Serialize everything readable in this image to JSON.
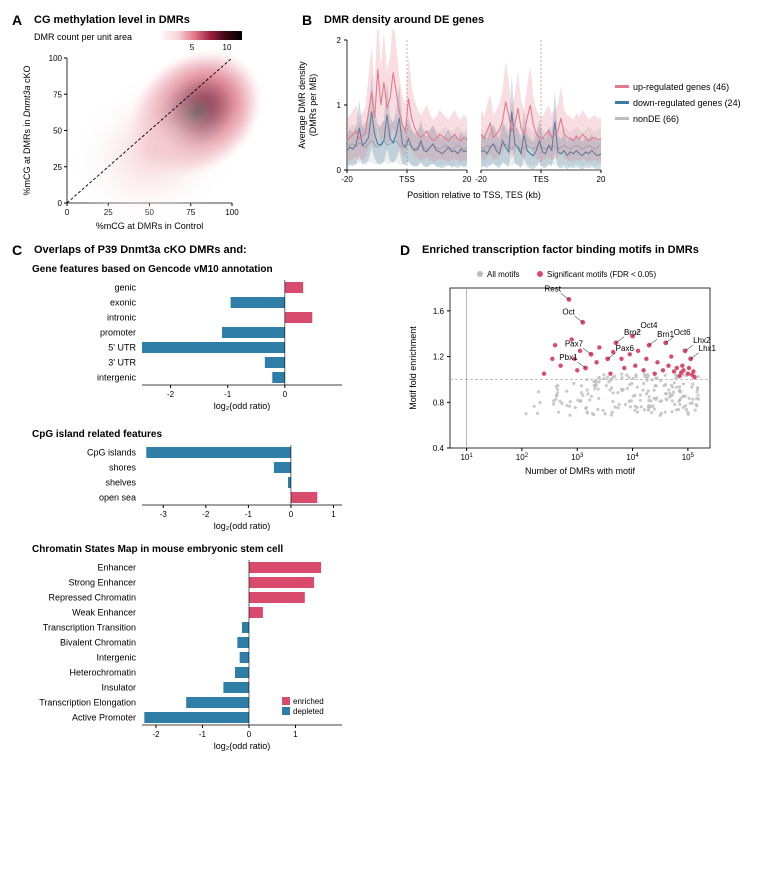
{
  "panelA": {
    "label": "A",
    "title": "CG methylation level in DMRs",
    "colorbar_label": "DMR count per unit area",
    "colorbar_ticks": [
      "5",
      "10"
    ],
    "xlabel": "%mCG at DMRs in Control",
    "ylabel": "%mCG at DMRs in Dnmt3a cKO",
    "xlim": [
      0,
      100
    ],
    "ylim": [
      0,
      100
    ],
    "xticks": [
      0,
      25,
      50,
      75,
      100
    ],
    "yticks": [
      0,
      25,
      50,
      75,
      100
    ],
    "colormap_stops": [
      "#fef6f6",
      "#f8d4d8",
      "#e27a8a",
      "#9e2242",
      "#3d0812",
      "#000000"
    ],
    "diagonal_dash": true
  },
  "panelB": {
    "label": "B",
    "title": "DMR density around DE genes",
    "ylabel": "Average DMR density\n(DMRs per MB)",
    "xlabel": "Position relative to TSS, TES (kb)",
    "ylim": [
      0,
      2
    ],
    "yticks": [
      0,
      1,
      2
    ],
    "sub_xticks_left": [
      "-20",
      "TSS",
      "20"
    ],
    "sub_xticks_right": [
      "-20",
      "TES",
      "20"
    ],
    "legend": [
      {
        "label": "up-regulated genes (46)",
        "color": "#e37b8c"
      },
      {
        "label": "down-regulated genes (24)",
        "color": "#3c7ca0"
      },
      {
        "label": "nonDE (66)",
        "color": "#bdbdbd"
      }
    ],
    "series": {
      "up_left": [
        0.45,
        0.5,
        0.55,
        0.6,
        0.48,
        0.52,
        0.58,
        0.9,
        1.2,
        0.8,
        1.55,
        1.0,
        1.35,
        0.95,
        1.1,
        1.5,
        1.2,
        0.9,
        0.7,
        0.6,
        1.1,
        0.8,
        0.65,
        0.55,
        0.5,
        0.55,
        0.6,
        0.5,
        0.45,
        0.48,
        0.55,
        0.52,
        0.48,
        0.45,
        0.5,
        0.55,
        0.48,
        0.45,
        0.5,
        0.46
      ],
      "up_right": [
        0.55,
        0.48,
        0.6,
        0.72,
        0.5,
        0.55,
        0.62,
        0.75,
        1.05,
        0.85,
        0.6,
        0.7,
        0.95,
        0.65,
        0.55,
        0.8,
        1.0,
        0.7,
        0.55,
        0.5,
        0.48,
        0.55,
        0.6,
        0.5,
        0.55,
        0.6,
        0.8,
        0.55,
        0.5,
        0.48,
        0.45,
        0.52,
        0.48,
        0.55,
        0.5,
        0.45,
        0.48,
        0.5,
        0.46,
        0.48
      ],
      "down_left": [
        0.3,
        0.35,
        0.32,
        0.4,
        0.65,
        0.38,
        0.42,
        0.5,
        0.9,
        0.55,
        0.4,
        0.38,
        0.45,
        0.85,
        0.48,
        0.42,
        0.55,
        0.8,
        0.4,
        0.35,
        0.48,
        0.35,
        0.3,
        0.32,
        0.45,
        0.3,
        0.28,
        0.35,
        0.4,
        0.3,
        0.28,
        0.25,
        0.3,
        0.35,
        0.28,
        0.3,
        0.25,
        0.32,
        0.28,
        0.3
      ],
      "down_right": [
        0.28,
        0.3,
        0.25,
        0.35,
        0.4,
        0.3,
        0.25,
        0.45,
        0.35,
        0.28,
        0.9,
        0.4,
        0.35,
        0.25,
        0.55,
        0.3,
        0.25,
        0.22,
        0.3,
        0.45,
        0.28,
        0.25,
        0.38,
        0.3,
        0.75,
        0.28,
        0.25,
        0.3,
        0.22,
        0.28,
        0.25,
        0.3,
        0.25,
        0.22,
        0.28,
        0.25,
        0.3,
        0.25,
        0.22,
        0.25
      ],
      "non_left": [
        0.35,
        0.38,
        0.4,
        0.36,
        0.42,
        0.38,
        0.35,
        0.4,
        0.45,
        0.38,
        0.35,
        0.4,
        0.45,
        0.38,
        0.4,
        0.42,
        0.45,
        0.38,
        0.35,
        0.38,
        0.4,
        0.35,
        0.32,
        0.35,
        0.38,
        0.35,
        0.32,
        0.35,
        0.38,
        0.35,
        0.32,
        0.35,
        0.38,
        0.35,
        0.32,
        0.35,
        0.38,
        0.35,
        0.32,
        0.35
      ],
      "non_right": [
        0.35,
        0.32,
        0.38,
        0.35,
        0.4,
        0.35,
        0.32,
        0.38,
        0.4,
        0.35,
        0.32,
        0.38,
        0.35,
        0.3,
        0.35,
        0.38,
        0.35,
        0.32,
        0.35,
        0.38,
        0.35,
        0.32,
        0.35,
        0.38,
        0.35,
        0.32,
        0.35,
        0.38,
        0.35,
        0.32,
        0.35,
        0.38,
        0.35,
        0.32,
        0.35,
        0.38,
        0.35,
        0.32,
        0.35,
        0.38
      ]
    },
    "ribbon_opacity": 0.25
  },
  "panelC": {
    "label": "C",
    "title_prefix": "Overlaps of P39 Dnmt3a cKO DMRs and:",
    "color_enriched": "#d94b6c",
    "color_depleted": "#2f7ea8",
    "xlabel": "log₂(odd ratio)",
    "legend": [
      {
        "label": "enriched",
        "color": "#d94b6c"
      },
      {
        "label": "depleted",
        "color": "#2f7ea8"
      }
    ],
    "sub1": {
      "title": "Gene features based on Gencode vM10 annotation",
      "xlim": [
        -2.5,
        1
      ],
      "xticks": [
        -2,
        -1,
        0
      ],
      "cats": [
        "genic",
        "exonic",
        "intronic",
        "promoter",
        "5' UTR",
        "3' UTR",
        "intergenic"
      ],
      "vals": [
        0.32,
        -0.95,
        0.48,
        -1.1,
        -2.5,
        -0.35,
        -0.22
      ]
    },
    "sub2": {
      "title": "CpG island related features",
      "xlim": [
        -3.5,
        1.2
      ],
      "xticks": [
        -3,
        -2,
        -1,
        0,
        1
      ],
      "cats": [
        "CpG islands",
        "shores",
        "shelves",
        "open sea"
      ],
      "vals": [
        -3.4,
        -0.4,
        -0.07,
        0.62
      ]
    },
    "sub3": {
      "title": "Chromatin States Map in mouse embryonic stem cell",
      "xlim": [
        -2.3,
        2
      ],
      "xticks": [
        -2,
        -1,
        0,
        1
      ],
      "cats": [
        "Enhancer",
        "Strong Enhancer",
        "Repressed Chromatin",
        "Weak Enhancer",
        "Transcription Transition",
        "Bivalent Chromatin",
        "Intergenic",
        "Heterochromatin",
        "Insulator",
        "Transcription Elongation",
        "Active Promoter"
      ],
      "vals": [
        1.55,
        1.4,
        1.2,
        0.3,
        -0.15,
        -0.25,
        -0.2,
        -0.3,
        -0.55,
        -1.35,
        -2.25
      ]
    }
  },
  "panelD": {
    "label": "D",
    "title": "Enriched transcription factor binding motifs in DMRs",
    "xlabel": "Number of DMRs with motif",
    "ylabel": "Motif fold enrichment",
    "xlim_log10": [
      0.7,
      5.4
    ],
    "ylim": [
      0.4,
      1.8
    ],
    "yticks": [
      0.4,
      0.8,
      1.2,
      1.6
    ],
    "xticks_log10": [
      1,
      2,
      3,
      4,
      5
    ],
    "hline": 1.0,
    "legend": [
      {
        "label": "All motifs",
        "color": "#bdbdbd"
      },
      {
        "label": "Significant motifs (FDR < 0.05)",
        "color": "#d94b6c"
      }
    ],
    "sig_color": "#d94b6c",
    "nonsig_color": "#bdbdbd",
    "named_points": [
      {
        "label": "Rest",
        "logx": 2.85,
        "y": 1.7
      },
      {
        "label": "Oct",
        "logx": 3.1,
        "y": 1.5
      },
      {
        "label": "Brn2",
        "logx": 3.7,
        "y": 1.32
      },
      {
        "label": "Oct4",
        "logx": 4.0,
        "y": 1.38
      },
      {
        "label": "Pax7",
        "logx": 3.25,
        "y": 1.22
      },
      {
        "label": "Pax6",
        "logx": 3.55,
        "y": 1.18
      },
      {
        "label": "Pbx1",
        "logx": 3.15,
        "y": 1.1
      },
      {
        "label": "Brn1",
        "logx": 4.3,
        "y": 1.3
      },
      {
        "label": "Oct6",
        "logx": 4.6,
        "y": 1.32
      },
      {
        "label": "Lhx2",
        "logx": 4.95,
        "y": 1.25
      },
      {
        "label": "Lhx1",
        "logx": 5.05,
        "y": 1.18
      }
    ],
    "extra_sig": [
      [
        2.55,
        1.18
      ],
      [
        2.7,
        1.12
      ],
      [
        2.9,
        1.35
      ],
      [
        3.0,
        1.08
      ],
      [
        3.05,
        1.25
      ],
      [
        3.35,
        1.15
      ],
      [
        3.4,
        1.28
      ],
      [
        3.6,
        1.05
      ],
      [
        3.65,
        1.24
      ],
      [
        3.8,
        1.18
      ],
      [
        3.85,
        1.1
      ],
      [
        3.95,
        1.22
      ],
      [
        4.05,
        1.12
      ],
      [
        4.1,
        1.25
      ],
      [
        4.2,
        1.08
      ],
      [
        4.25,
        1.18
      ],
      [
        4.4,
        1.05
      ],
      [
        4.45,
        1.15
      ],
      [
        4.55,
        1.08
      ],
      [
        4.65,
        1.12
      ],
      [
        4.7,
        1.2
      ],
      [
        4.75,
        1.07
      ],
      [
        4.8,
        1.1
      ],
      [
        4.85,
        1.03
      ],
      [
        4.88,
        1.06
      ],
      [
        4.9,
        1.12
      ],
      [
        4.92,
        1.08
      ],
      [
        5.0,
        1.05
      ],
      [
        5.02,
        1.1
      ],
      [
        5.08,
        1.04
      ],
      [
        5.1,
        1.07
      ],
      [
        5.12,
        1.02
      ],
      [
        2.4,
        1.05
      ],
      [
        2.6,
        1.3
      ],
      [
        2.95,
        1.18
      ]
    ],
    "nonsig_count": 250
  }
}
